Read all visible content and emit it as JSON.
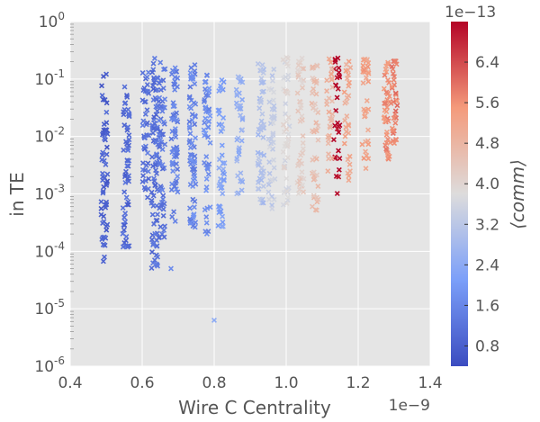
{
  "chart_data": {
    "type": "scatter",
    "title": "",
    "xlabel": "Wire C Centrality",
    "ylabel": "in TE",
    "x_offset_label": "1e−9",
    "x_ticks": [
      "0.4",
      "0.6",
      "0.8",
      "1.0",
      "1.2",
      "1.4"
    ],
    "xlim": [
      0.4,
      1.4
    ],
    "y_scale": "log",
    "ylim_exponent": [
      -6,
      0
    ],
    "y_ticks": [
      {
        "base": "10",
        "exp": "-6"
      },
      {
        "base": "10",
        "exp": "-5"
      },
      {
        "base": "10",
        "exp": "-4"
      },
      {
        "base": "10",
        "exp": "-3"
      },
      {
        "base": "10",
        "exp": "-2"
      },
      {
        "base": "10",
        "exp": "-1"
      },
      {
        "base": "10",
        "exp": "0"
      }
    ],
    "grid": true,
    "marker": "x",
    "colorbar": {
      "label": "⟨comm⟩",
      "offset_label": "1e−13",
      "colormap": "coolwarm",
      "range": [
        0.4,
        7.2
      ],
      "ticks": [
        "0.8",
        "1.6",
        "2.4",
        "3.2",
        "4.0",
        "4.8",
        "5.6",
        "6.4"
      ]
    },
    "clusters": [
      {
        "x": 0.495,
        "y_log_range": [
          -4.2,
          -0.9
        ],
        "c": 0.8,
        "n": 60
      },
      {
        "x": 0.555,
        "y_log_range": [
          -4.0,
          -1.0
        ],
        "c": 1.0,
        "n": 60
      },
      {
        "x": 0.61,
        "y_log_range": [
          -3.1,
          -0.8
        ],
        "c": 1.2,
        "n": 45
      },
      {
        "x": 0.635,
        "y_log_range": [
          -4.3,
          -0.6
        ],
        "c": 1.1,
        "n": 80
      },
      {
        "x": 0.655,
        "y_log_range": [
          -3.8,
          -0.7
        ],
        "c": 1.3,
        "n": 60
      },
      {
        "x": 0.69,
        "y_log_range": [
          -3.5,
          -0.7
        ],
        "c": 1.5,
        "n": 60
      },
      {
        "x": 0.74,
        "y_log_range": [
          -3.6,
          -0.7
        ],
        "c": 1.6,
        "n": 70
      },
      {
        "x": 0.78,
        "y_log_range": [
          -3.7,
          -0.9
        ],
        "c": 1.7,
        "n": 50
      },
      {
        "x": 0.82,
        "y_log_range": [
          -3.6,
          -0.9
        ],
        "c": 2.2,
        "n": 45
      },
      {
        "x": 0.87,
        "y_log_range": [
          -3.0,
          -0.9
        ],
        "c": 2.6,
        "n": 40
      },
      {
        "x": 0.93,
        "y_log_range": [
          -3.2,
          -0.7
        ],
        "c": 3.0,
        "n": 50
      },
      {
        "x": 0.96,
        "y_log_range": [
          -3.3,
          -0.8
        ],
        "c": 3.4,
        "n": 40
      },
      {
        "x": 1.0,
        "y_log_range": [
          -3.2,
          -0.6
        ],
        "c": 3.8,
        "n": 50
      },
      {
        "x": 1.04,
        "y_log_range": [
          -3.0,
          -0.6
        ],
        "c": 4.2,
        "n": 45
      },
      {
        "x": 1.08,
        "y_log_range": [
          -3.4,
          -0.7
        ],
        "c": 4.5,
        "n": 45
      },
      {
        "x": 1.14,
        "y_log_range": [
          -3.0,
          -0.6
        ],
        "c": 7.2,
        "n": 30
      },
      {
        "x": 1.12,
        "y_log_range": [
          -2.8,
          -0.6
        ],
        "c": 4.9,
        "n": 30
      },
      {
        "x": 1.17,
        "y_log_range": [
          -2.8,
          -0.6
        ],
        "c": 5.1,
        "n": 30
      },
      {
        "x": 1.22,
        "y_log_range": [
          -2.6,
          -0.6
        ],
        "c": 5.3,
        "n": 35
      },
      {
        "x": 1.28,
        "y_log_range": [
          -2.4,
          -0.7
        ],
        "c": 5.6,
        "n": 40
      },
      {
        "x": 1.3,
        "y_log_range": [
          -2.2,
          -0.6
        ],
        "c": 5.8,
        "n": 35
      }
    ],
    "outliers": [
      {
        "x": 0.8,
        "y_exp": -5.2,
        "c": 2.4
      },
      {
        "x": 0.495,
        "y_exp": -4.1,
        "c": 0.9
      },
      {
        "x": 0.68,
        "y_exp": -4.3,
        "c": 1.7
      }
    ]
  }
}
